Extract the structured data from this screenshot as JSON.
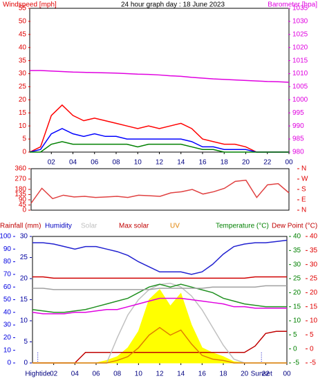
{
  "chart_data": [
    {
      "type": "line",
      "title": "24 hour graph day : 18 June 2023",
      "ylabel": "Windspeed [mph]",
      "y2label": "Barometer [hpa]",
      "x": [
        0,
        1,
        2,
        3,
        4,
        5,
        6,
        7,
        8,
        9,
        10,
        11,
        12,
        13,
        14,
        15,
        16,
        17,
        18,
        19,
        20,
        21,
        22,
        23,
        24
      ],
      "xlim": [
        0,
        24
      ],
      "xticks": [
        {
          "value": 2,
          "label": "02"
        },
        {
          "value": 4,
          "label": "04"
        },
        {
          "value": 6,
          "label": "06"
        },
        {
          "value": 8,
          "label": "08"
        },
        10,
        12,
        14,
        16,
        18,
        20,
        22,
        {
          "value": 24,
          "label": "00"
        }
      ],
      "ylim": [
        0,
        55
      ],
      "yticks": [
        0,
        5,
        10,
        15,
        20,
        25,
        30,
        35,
        40,
        45,
        50,
        55
      ],
      "y2lim": [
        980,
        1035
      ],
      "y2ticks": [
        980,
        985,
        990,
        995,
        1000,
        1005,
        1010,
        1015,
        1020,
        1025,
        1030,
        1035
      ],
      "series": [
        {
          "color": "#e000e0",
          "axis": "y2",
          "values": [
            1011.2,
            1011.2,
            1011,
            1010.8,
            1010.6,
            1010.5,
            1010.4,
            1010.3,
            1010.2,
            1010,
            1009.8,
            1009.7,
            1009.5,
            1009.2,
            1009,
            1008.6,
            1008.3,
            1008,
            1007.8,
            1007.6,
            1007.4,
            1007.2,
            1007,
            1006.9,
            1006.7
          ]
        },
        {
          "color": "#ff0000",
          "values": [
            0,
            2,
            14,
            18,
            14,
            12,
            13,
            12,
            11,
            10,
            9,
            10,
            9,
            10,
            11,
            9,
            5,
            4,
            3,
            3,
            2,
            0,
            0,
            0,
            0
          ]
        },
        {
          "color": "#0000ff",
          "values": [
            0,
            1,
            7,
            9,
            7,
            6,
            7,
            6,
            6,
            5,
            5,
            5,
            5,
            5,
            5,
            4,
            2,
            2,
            1,
            1,
            1,
            0,
            0,
            0,
            0
          ]
        },
        {
          "color": "#008000",
          "values": [
            0,
            0,
            3,
            4,
            3,
            3,
            3,
            3,
            3,
            3,
            2,
            3,
            3,
            3,
            3,
            2,
            1,
            1,
            0,
            0,
            0,
            0,
            0,
            0,
            0
          ]
        }
      ]
    },
    {
      "type": "line",
      "x": [
        0,
        1,
        2,
        3,
        4,
        5,
        6,
        7,
        8,
        9,
        10,
        11,
        12,
        13,
        14,
        15,
        16,
        17,
        18,
        19,
        20,
        21,
        22,
        23,
        24
      ],
      "xlim": [
        0,
        24
      ],
      "ylim": [
        0,
        360
      ],
      "yticks": [
        0,
        45,
        90,
        135,
        180,
        270,
        360
      ],
      "y2lim": [
        0,
        360
      ],
      "y2ticks": [
        {
          "value": 360,
          "label": "N"
        },
        {
          "value": 270,
          "label": "W"
        },
        {
          "value": 180,
          "label": "S"
        },
        {
          "value": 90,
          "label": "E"
        },
        {
          "value": 0,
          "label": "N"
        }
      ],
      "series": [
        {
          "color": "#e04040",
          "values": [
            60,
            190,
            100,
            130,
            115,
            120,
            110,
            115,
            120,
            110,
            130,
            125,
            120,
            150,
            160,
            180,
            140,
            160,
            190,
            250,
            260,
            110,
            220,
            230,
            150
          ]
        }
      ]
    },
    {
      "type": "line",
      "x": [
        0,
        1,
        2,
        3,
        4,
        5,
        6,
        7,
        8,
        9,
        10,
        11,
        12,
        13,
        14,
        15,
        16,
        17,
        18,
        19,
        20,
        21,
        22,
        23,
        24
      ],
      "xlim": [
        0,
        24
      ],
      "xticks": [
        {
          "value": 2,
          "label": "02"
        },
        {
          "value": 4,
          "label": "04"
        },
        {
          "value": 6,
          "label": "06"
        },
        {
          "value": 8,
          "label": "08"
        },
        10,
        12,
        14,
        16,
        18,
        20,
        22,
        {
          "value": 24,
          "label": "00"
        }
      ],
      "ylim": [
        0,
        100
      ],
      "yticks": [
        0,
        10,
        20,
        30,
        40,
        50,
        60,
        70,
        80,
        90,
        100
      ],
      "rain_lim": [
        0,
        30
      ],
      "rain_ticks": [
        0,
        5,
        10,
        15,
        20,
        25,
        30
      ],
      "y2lim": [
        -5,
        40
      ],
      "y2ticks": [
        -5,
        0,
        5,
        10,
        15,
        20,
        25,
        30,
        35,
        40
      ],
      "y3ticks": [
        -5,
        0,
        5,
        10,
        15,
        20,
        25,
        30,
        35,
        40
      ],
      "annotations": [
        {
          "text": "Hightide",
          "x": 0.5
        },
        {
          "text": "Sunset",
          "x": 21.6
        }
      ],
      "series": [
        {
          "name": "Rainfall (mm)",
          "color": "#c00000",
          "axis": "rain",
          "values": [
            0,
            0,
            0,
            0,
            0,
            2.5,
            2.5,
            2.5,
            2.5,
            2.5,
            2.5,
            2.5,
            2.5,
            2.5,
            2.5,
            2.5,
            2.5,
            2.5,
            2.5,
            2.5,
            2.5,
            4,
            7,
            7.5,
            7.5
          ]
        },
        {
          "name": "Humidity",
          "color": "#2020d0",
          "values": [
            95,
            95,
            94,
            92,
            90,
            92,
            92,
            90,
            88,
            85,
            80,
            76,
            72,
            72,
            72,
            70,
            72,
            78,
            86,
            92,
            94,
            95,
            95,
            96,
            97
          ]
        },
        {
          "name": "Solar",
          "color": "#c0c0c0",
          "values": [
            0,
            0,
            0,
            0,
            0,
            0,
            0,
            0,
            20,
            38,
            50,
            58,
            62,
            63,
            60,
            53,
            42,
            28,
            14,
            3,
            0,
            0,
            0,
            0,
            0
          ]
        },
        {
          "name": "Max solar",
          "color": "#d00000",
          "values": [
            68,
            68,
            67,
            67,
            67,
            67,
            67,
            67,
            67,
            67,
            67,
            67,
            67,
            67,
            67,
            67,
            67,
            67,
            67,
            67,
            67,
            68,
            68,
            68,
            68
          ]
        },
        {
          "name": "UV",
          "color": "#e08000",
          "values": [
            0,
            0,
            0,
            0,
            0,
            0,
            0,
            0,
            2,
            5,
            12,
            22,
            28,
            22,
            26,
            15,
            6,
            3,
            2,
            0,
            0,
            0,
            0,
            0,
            0
          ]
        },
        {
          "name": "Temperature (°C)",
          "color": "#209020",
          "axis": "y2",
          "values": [
            14,
            13.5,
            13,
            13,
            13.5,
            14,
            15,
            16,
            17,
            18,
            20,
            22,
            23,
            22,
            23,
            22,
            21,
            20,
            18,
            17,
            16,
            15.5,
            15,
            15,
            15
          ]
        },
        {
          "name": "Dew Point (°C)",
          "color": "#e000e0",
          "axis": "y2",
          "values": [
            13,
            12.5,
            12.5,
            12.5,
            13,
            13,
            13.5,
            14,
            14,
            15,
            16,
            17,
            18,
            18,
            18,
            17.5,
            17,
            16.5,
            16,
            15,
            15,
            14.5,
            14.5,
            14.5,
            14.5
          ]
        },
        {
          "color": "#ffff00",
          "area": true,
          "values": [
            0,
            0,
            0,
            0,
            0,
            0,
            0,
            2,
            5,
            12,
            25,
            50,
            58,
            45,
            55,
            30,
            12,
            8,
            5,
            1,
            0,
            0,
            0,
            0,
            0
          ]
        },
        {
          "color": "#a0a0a0",
          "values": [
            59,
            59,
            58,
            58,
            58,
            58,
            58,
            58,
            58,
            58,
            58,
            58,
            59,
            59,
            59,
            59,
            59,
            60,
            60,
            60,
            60,
            60,
            61,
            61,
            61
          ]
        }
      ]
    }
  ]
}
